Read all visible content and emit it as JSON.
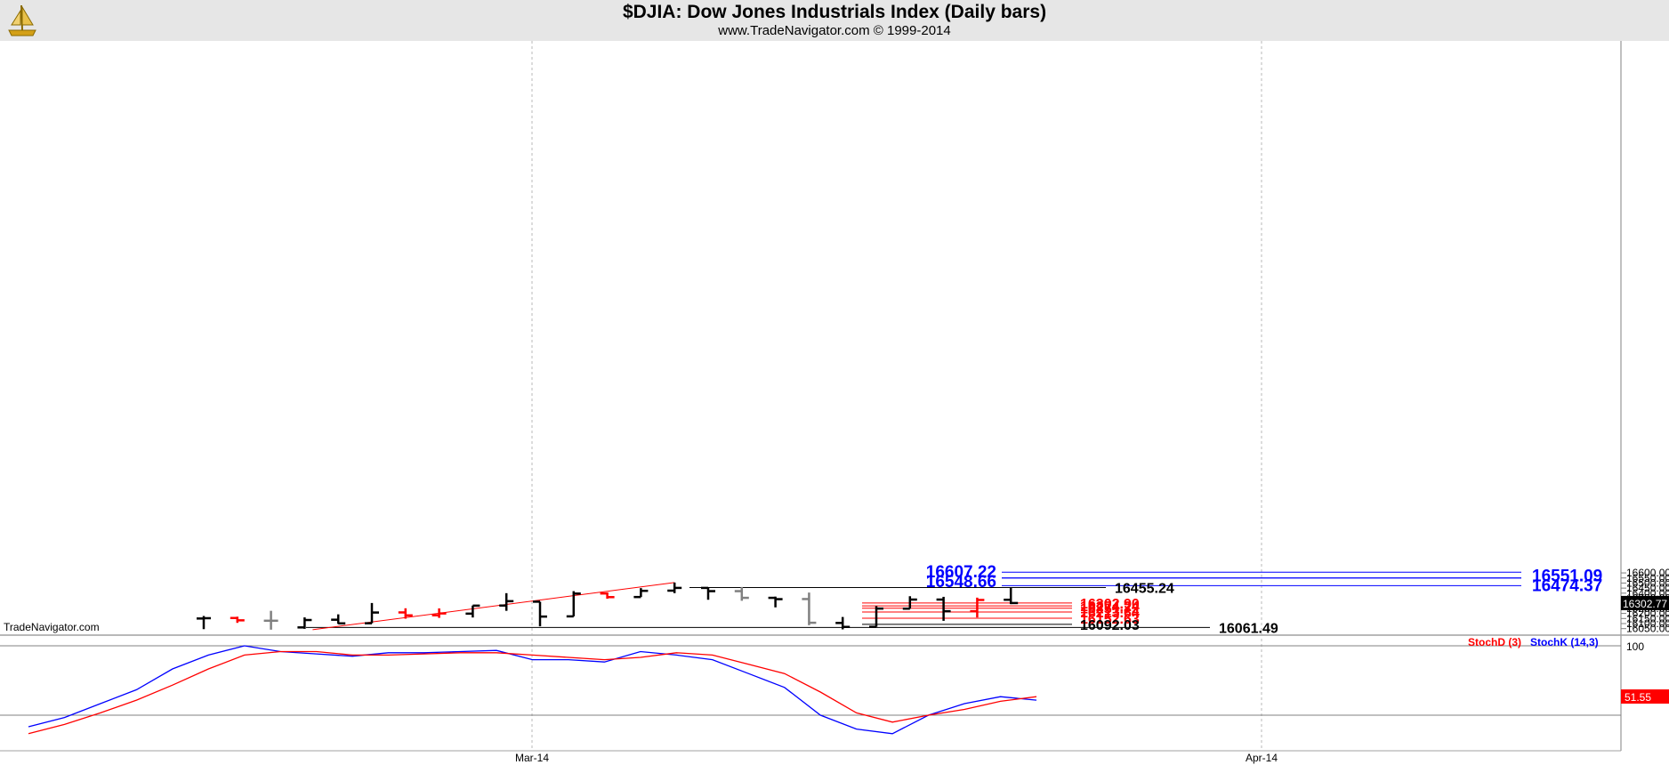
{
  "header": {
    "title": "$DJIA:  Dow Jones Industrials Index  (Daily bars)",
    "subtitle": "www.TradeNavigator.com © 1999-2014"
  },
  "watermark": "TradeNavigator.com",
  "colors": {
    "background": "#ffffff",
    "header_bg": "#e6e6e6",
    "up_bar": "#000000",
    "down_bar": "#ff0000",
    "neutral_bar": "#808080",
    "trendline": "#ff0000",
    "blue_level": "#0000ff",
    "red_level": "#ff0000",
    "stoch_k": "#0000ff",
    "stoch_d": "#ff0000",
    "logo": "#d4a017"
  },
  "icons": {
    "logo": "trade-navigator-logo-icon"
  },
  "chart_data": [
    {
      "type": "ohlc",
      "title": "$DJIA:  Dow Jones Industrials Index  (Daily bars)",
      "y_ticks": [
        16050,
        16100,
        16150,
        16200,
        16250,
        16300,
        16350,
        16400,
        16450,
        16500,
        16550,
        16600
      ],
      "y_tick_labels": [
        "16050.00",
        "16100.00",
        "16150.00",
        "16200.00",
        "16250.00",
        "16300.00",
        "16350.00",
        "16400.00",
        "16450.00",
        "16500.00",
        "16550.00",
        "16600.00"
      ],
      "ylim": [
        16040,
        16650
      ],
      "x_tick_labels": [
        "Mar-14",
        "Apr-14"
      ],
      "last_price_label": "16302.77",
      "bars": [
        {
          "o": 16150,
          "h": 16175,
          "l": 16045,
          "c": 16153,
          "color": "black"
        },
        {
          "o": 16155,
          "h": 16168,
          "l": 16107,
          "c": 16132,
          "color": "red"
        },
        {
          "o": 16128,
          "h": 16226,
          "l": 16040,
          "c": 16128,
          "color": "gray"
        },
        {
          "o": 16062,
          "h": 16161,
          "l": 16048,
          "c": 16135,
          "color": "black"
        },
        {
          "o": 16138,
          "h": 16191,
          "l": 16097,
          "c": 16102,
          "color": "black"
        },
        {
          "o": 16103,
          "h": 16303,
          "l": 16103,
          "c": 16209,
          "color": "black"
        },
        {
          "o": 16210,
          "h": 16251,
          "l": 16148,
          "c": 16181,
          "color": "red"
        },
        {
          "o": 16182,
          "h": 16250,
          "l": 16156,
          "c": 16200,
          "color": "red"
        },
        {
          "o": 16198,
          "h": 16278,
          "l": 16160,
          "c": 16277,
          "color": "black"
        },
        {
          "o": 16278,
          "h": 16400,
          "l": 16226,
          "c": 16321,
          "color": "black"
        },
        {
          "o": 16316,
          "h": 16316,
          "l": 16073,
          "c": 16169,
          "color": "black"
        },
        {
          "o": 16171,
          "h": 16420,
          "l": 16171,
          "c": 16396,
          "color": "black"
        },
        {
          "o": 16397,
          "h": 16408,
          "l": 16345,
          "c": 16361,
          "color": "red"
        },
        {
          "o": 16362,
          "h": 16450,
          "l": 16362,
          "c": 16423,
          "color": "black"
        },
        {
          "o": 16425,
          "h": 16505,
          "l": 16400,
          "c": 16452,
          "color": "black"
        },
        {
          "o": 16452,
          "h": 16452,
          "l": 16335,
          "c": 16420,
          "color": "black"
        },
        {
          "o": 16420,
          "h": 16461,
          "l": 16325,
          "c": 16354,
          "color": "gray"
        },
        {
          "o": 16354,
          "h": 16366,
          "l": 16260,
          "c": 16341,
          "color": "black"
        },
        {
          "o": 16342,
          "h": 16406,
          "l": 16084,
          "c": 16108,
          "color": "gray"
        },
        {
          "o": 16106,
          "h": 16165,
          "l": 16043,
          "c": 16067,
          "color": "black"
        },
        {
          "o": 16068,
          "h": 16272,
          "l": 16068,
          "c": 16248,
          "color": "black"
        },
        {
          "o": 16247,
          "h": 16370,
          "l": 16247,
          "c": 16337,
          "color": "black"
        },
        {
          "o": 16337,
          "h": 16364,
          "l": 16127,
          "c": 16222,
          "color": "black"
        },
        {
          "o": 16222,
          "h": 16356,
          "l": 16160,
          "c": 16333,
          "color": "red"
        },
        {
          "o": 16335,
          "h": 16455,
          "l": 16292,
          "c": 16302.77,
          "color": "black"
        }
      ],
      "trendline": {
        "from_bar": 3,
        "from_value": 16040,
        "to_bar": 14,
        "to_value": 16505,
        "color": "red"
      },
      "levels": [
        {
          "value": 16607.22,
          "label": "16607.22",
          "color": "blue"
        },
        {
          "value": 16551.09,
          "label": "16551.09",
          "color": "blue"
        },
        {
          "value": 16548.66,
          "label": "16548.66",
          "color": "blue"
        },
        {
          "value": 16474.37,
          "label": "16474.37",
          "color": "blue"
        },
        {
          "value": 16455.24,
          "label": "16455.24",
          "color": "black"
        },
        {
          "value": 16302.9,
          "label": "16302.90",
          "color": "red"
        },
        {
          "value": 16274.24,
          "label": "16274.24",
          "color": "red"
        },
        {
          "value": 16251.72,
          "label": "16251.72",
          "color": "red"
        },
        {
          "value": 16213.64,
          "label": "16213.64",
          "color": "red"
        },
        {
          "value": 16152.63,
          "label": "16152.63",
          "color": "red"
        },
        {
          "value": 16092.03,
          "label": "16092.03",
          "color": "black"
        },
        {
          "value": 16061.49,
          "label": "16061.49",
          "color": "black"
        }
      ]
    },
    {
      "type": "line",
      "series": [
        {
          "name": "StochK (14,3)",
          "color": "blue",
          "values": [
            10,
            18,
            30,
            42,
            60,
            72,
            80,
            75,
            73,
            71,
            74,
            74,
            75,
            76,
            68,
            68,
            66,
            75,
            72,
            68,
            56,
            44,
            20,
            8,
            4,
            20,
            30,
            36,
            33
          ]
        },
        {
          "name": "StochD (3)",
          "color": "red",
          "values": [
            4,
            12,
            22,
            33,
            46,
            60,
            72,
            75,
            75,
            72,
            72,
            73,
            74,
            74,
            72,
            70,
            68,
            70,
            74,
            72,
            64,
            56,
            40,
            22,
            14,
            20,
            25,
            32,
            36
          ]
        }
      ],
      "y_tick_labels": [
        "100"
      ],
      "ylim": [
        0,
        100
      ],
      "reference_lines": [
        80,
        20
      ],
      "last_value_label": "51.55"
    }
  ]
}
